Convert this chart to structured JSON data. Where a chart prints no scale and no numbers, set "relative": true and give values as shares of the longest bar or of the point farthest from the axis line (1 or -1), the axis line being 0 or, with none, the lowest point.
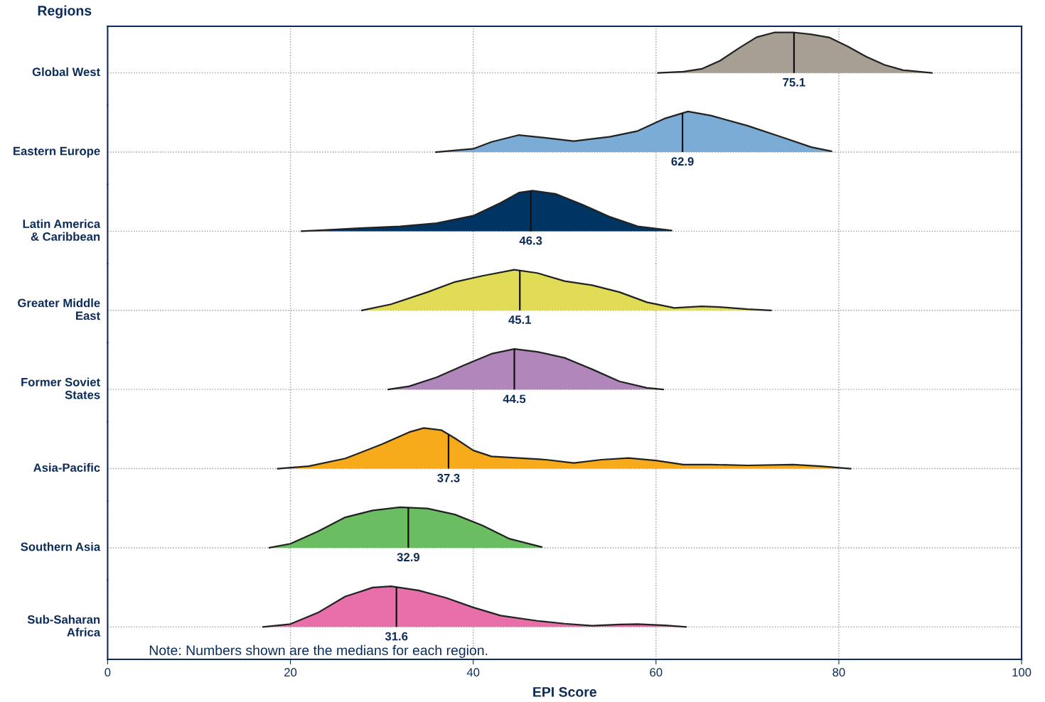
{
  "chart_data": [
    {
      "type": "area",
      "title": "Regions",
      "ylabel": "Global West",
      "color": "#a89f94",
      "relative": true,
      "xlim": [
        0,
        100
      ],
      "xticks": [
        0,
        20,
        40,
        60,
        80,
        100
      ],
      "tick_labels": false,
      "grid": "x",
      "x": [
        60.2,
        63,
        65,
        67,
        69,
        71,
        73,
        75,
        77,
        79,
        81,
        83,
        85,
        87,
        90.2
      ],
      "values": [
        0.0,
        0.03,
        0.1,
        0.3,
        0.6,
        0.88,
        1.0,
        1.0,
        0.95,
        0.87,
        0.65,
        0.4,
        0.2,
        0.07,
        0.0
      ],
      "ref_lines": [
        {
          "axis": "x",
          "value": 75.1,
          "label": "75.1"
        }
      ]
    },
    {
      "type": "area",
      "ylabel": "Eastern Europe",
      "color": "#7bacd6",
      "relative": true,
      "xlim": [
        0,
        100
      ],
      "xticks": [
        0,
        20,
        40,
        60,
        80,
        100
      ],
      "tick_labels": false,
      "grid": "x",
      "x": [
        35.9,
        40,
        42,
        45,
        48,
        51,
        55,
        58,
        61,
        63.5,
        66,
        70,
        74,
        77,
        79.2
      ],
      "values": [
        0.0,
        0.08,
        0.25,
        0.42,
        0.35,
        0.27,
        0.38,
        0.52,
        0.83,
        1.0,
        0.9,
        0.65,
        0.35,
        0.12,
        0.02
      ],
      "ref_lines": [
        {
          "axis": "x",
          "value": 62.9,
          "label": "62.9"
        }
      ]
    },
    {
      "type": "area",
      "ylabel": "Latin America\n& Caribbean",
      "color": "#003462",
      "relative": true,
      "xlim": [
        0,
        100
      ],
      "xticks": [
        0,
        20,
        40,
        60,
        80,
        100
      ],
      "tick_labels": false,
      "grid": "x",
      "x": [
        21.2,
        24,
        28,
        32,
        36,
        40,
        43,
        45,
        46.5,
        49,
        52,
        55,
        58,
        61.7
      ],
      "values": [
        0.0,
        0.03,
        0.08,
        0.12,
        0.2,
        0.38,
        0.7,
        0.95,
        1.0,
        0.92,
        0.65,
        0.35,
        0.12,
        0.02
      ],
      "ref_lines": [
        {
          "axis": "x",
          "value": 46.3,
          "label": "46.3"
        }
      ]
    },
    {
      "type": "area",
      "ylabel": "Greater Middle\nEast",
      "color": "#e0dc55",
      "relative": true,
      "xlim": [
        0,
        100
      ],
      "xticks": [
        0,
        20,
        40,
        60,
        80,
        100
      ],
      "tick_labels": false,
      "grid": "x",
      "x": [
        27.8,
        31,
        35,
        38,
        41,
        44.5,
        47,
        50,
        53,
        56,
        59,
        62,
        65,
        67,
        70,
        72.6
      ],
      "values": [
        0.0,
        0.15,
        0.45,
        0.7,
        0.85,
        1.0,
        0.92,
        0.72,
        0.62,
        0.45,
        0.2,
        0.06,
        0.1,
        0.08,
        0.03,
        0.0
      ],
      "ref_lines": [
        {
          "axis": "x",
          "value": 45.1,
          "label": "45.1"
        }
      ]
    },
    {
      "type": "area",
      "ylabel": "Former Soviet\nStates",
      "color": "#b186bb",
      "relative": true,
      "xlim": [
        0,
        100
      ],
      "xticks": [
        0,
        20,
        40,
        60,
        80,
        100
      ],
      "tick_labels": false,
      "grid": "x",
      "x": [
        30.7,
        33,
        36,
        39,
        42,
        44.5,
        47,
        50,
        53,
        56,
        59,
        60.8
      ],
      "values": [
        0.0,
        0.08,
        0.3,
        0.6,
        0.88,
        1.0,
        0.93,
        0.78,
        0.5,
        0.2,
        0.04,
        0.0
      ],
      "ref_lines": [
        {
          "axis": "x",
          "value": 44.5,
          "label": "44.5"
        }
      ]
    },
    {
      "type": "area",
      "ylabel": "Asia-Pacific",
      "color": "#f7ab1a",
      "relative": true,
      "xlim": [
        0,
        100
      ],
      "xticks": [
        0,
        20,
        40,
        60,
        80,
        100
      ],
      "tick_labels": false,
      "grid": "x",
      "x": [
        18.6,
        22,
        26,
        30,
        33,
        34.6,
        36.5,
        38,
        40,
        42,
        45,
        48,
        51,
        54,
        57,
        60,
        63,
        66,
        70,
        75,
        78,
        81.3
      ],
      "values": [
        0.0,
        0.06,
        0.25,
        0.6,
        0.9,
        1.0,
        0.95,
        0.75,
        0.45,
        0.3,
        0.26,
        0.22,
        0.14,
        0.22,
        0.26,
        0.2,
        0.1,
        0.1,
        0.08,
        0.1,
        0.06,
        0.0
      ],
      "ref_lines": [
        {
          "axis": "x",
          "value": 37.3,
          "label": "37.3"
        }
      ]
    },
    {
      "type": "area",
      "ylabel": "Southern Asia",
      "color": "#6abd61",
      "relative": true,
      "xlim": [
        0,
        100
      ],
      "xticks": [
        0,
        20,
        40,
        60,
        80,
        100
      ],
      "tick_labels": false,
      "grid": "x",
      "x": [
        17.7,
        20,
        23,
        26,
        29,
        32,
        35,
        38,
        41,
        44,
        47.5
      ],
      "values": [
        0.0,
        0.1,
        0.4,
        0.75,
        0.92,
        1.0,
        0.97,
        0.82,
        0.55,
        0.22,
        0.02
      ],
      "ref_lines": [
        {
          "axis": "x",
          "value": 32.9,
          "label": "32.9"
        }
      ]
    },
    {
      "type": "area",
      "ylabel": "Sub-Saharan\nAfrica",
      "xlabel": "EPI Score",
      "color": "#e86fa9",
      "relative": true,
      "xlim": [
        0,
        100
      ],
      "xticks": [
        0,
        20,
        40,
        60,
        80,
        100
      ],
      "tick_labels": "x",
      "grid": "x",
      "x": [
        17.0,
        20,
        23,
        26,
        29,
        31,
        34,
        37,
        40,
        43,
        47,
        50,
        53,
        56,
        58,
        61,
        63.3
      ],
      "values": [
        0.0,
        0.07,
        0.35,
        0.75,
        0.97,
        1.0,
        0.9,
        0.72,
        0.48,
        0.28,
        0.15,
        0.08,
        0.03,
        0.06,
        0.07,
        0.04,
        0.0
      ],
      "ref_lines": [
        {
          "axis": "x",
          "value": 31.6,
          "label": "31.6"
        }
      ],
      "annotations": [
        "Note: Numbers shown are the medians for each region."
      ]
    }
  ]
}
